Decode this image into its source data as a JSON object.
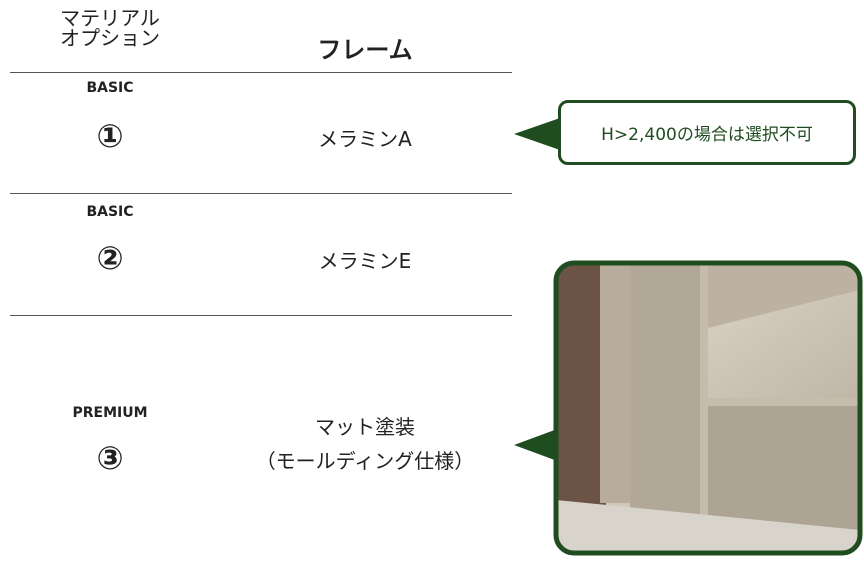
{
  "header": {
    "column_1": [
      "マテリアル",
      "オプション"
    ],
    "column_2": "フレーム"
  },
  "rows": [
    {
      "grade": "BASIC",
      "number": "①",
      "frame": [
        "メラミンA"
      ]
    },
    {
      "grade": "BASIC",
      "number": "②",
      "frame": [
        "メラミンE"
      ]
    },
    {
      "grade": "PREMIUM",
      "number": "③",
      "frame": [
        "マット塗装",
        "（モールディング仕様）"
      ]
    }
  ],
  "callout": "H>2,400の場合は選択不可"
}
